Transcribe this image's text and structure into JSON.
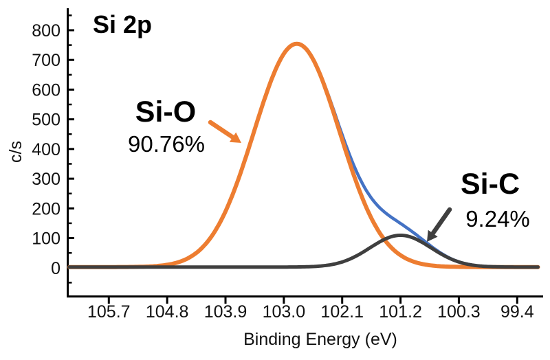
{
  "chart_data": {
    "type": "line",
    "title": "Si 2p",
    "xlabel": "Binding Energy (eV)",
    "ylabel": "c/s",
    "x_axis_descending": true,
    "x_tick_labels": [
      "105.7",
      "104.8",
      "103.9",
      "103.0",
      "102.1",
      "101.2",
      "100.3",
      "99.4"
    ],
    "xlim": [
      106.35,
      99.0
    ],
    "ylim": [
      -100,
      874
    ],
    "y_major_ticks": [
      0,
      100,
      200,
      300,
      400,
      500,
      600,
      700,
      800
    ],
    "y_minor_ticks": [
      -50,
      50,
      150,
      250,
      350,
      450,
      550,
      650,
      750,
      850
    ],
    "grid": false,
    "legend": "none",
    "baseline_cps": 2.5,
    "curve_range_ev": [
      106.31,
      99.06
    ],
    "series": [
      {
        "name": "Envelope",
        "role": "envelope",
        "color": "#4472C4"
      },
      {
        "name": "Si-O",
        "role": "component",
        "color": "#ED7D31",
        "percent": "90.76%",
        "peak": {
          "center_ev": 102.8,
          "amplitude_cps": 752,
          "sigma_ev": 0.66
        }
      },
      {
        "name": "Si-C",
        "role": "component",
        "color": "#3F3F3F",
        "percent": "9.24%",
        "peak": {
          "center_ev": 101.2,
          "amplitude_cps": 107,
          "sigma_ev": 0.47
        }
      }
    ],
    "arrows": [
      {
        "name": "si-o-arrow",
        "color": "#ED7D31",
        "from": [
          306,
          178
        ],
        "to": [
          351,
          208
        ]
      },
      {
        "name": "si-c-arrow",
        "color": "#3F3F3F",
        "from": [
          654,
          305
        ],
        "to": [
          621,
          352
        ]
      }
    ]
  }
}
